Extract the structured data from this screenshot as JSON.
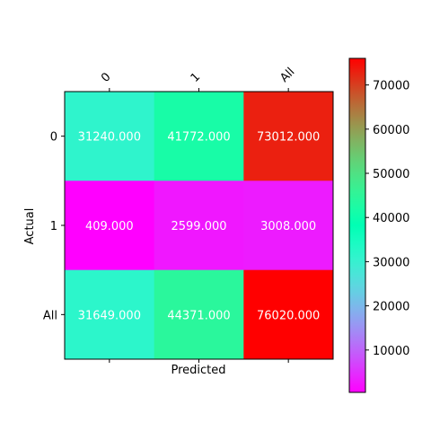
{
  "chart_data": {
    "type": "heatmap",
    "xlabel": "Predicted",
    "ylabel": "Actual",
    "x_categories": [
      "0",
      "1",
      "All"
    ],
    "y_categories": [
      "0",
      "1",
      "All"
    ],
    "values": [
      [
        31240.0,
        41772.0,
        73012.0
      ],
      [
        409.0,
        2599.0,
        3008.0
      ],
      [
        31649.0,
        44371.0,
        76020.0
      ]
    ],
    "value_labels": [
      [
        "31240.000",
        "41772.000",
        "73012.000"
      ],
      [
        "409.000",
        "2599.000",
        "3008.000"
      ],
      [
        "31649.000",
        "44371.000",
        "76020.000"
      ]
    ],
    "colormap": "rainbow",
    "colorbar": {
      "vmin": 409,
      "vmax": 76020,
      "ticks": [
        10000,
        20000,
        30000,
        40000,
        50000,
        60000,
        70000
      ],
      "tick_labels": [
        "10000",
        "20000",
        "30000",
        "40000",
        "50000",
        "60000",
        "70000"
      ]
    },
    "x_tick_position": "top",
    "x_tick_rotation_deg": 45,
    "grid": false,
    "cell_text_color": "#ffffff"
  }
}
